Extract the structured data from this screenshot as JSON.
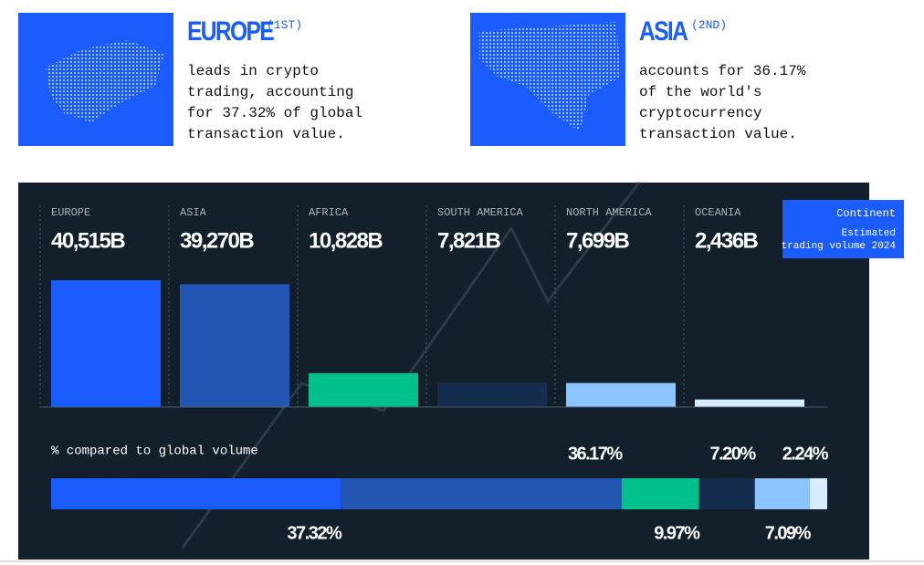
{
  "cards": [
    {
      "title": "EUROPE",
      "rank": "(1ST)",
      "text": "leads in crypto trading, accounting for 37.32% of global transaction value."
    },
    {
      "title": "ASIA",
      "rank": "(2ND)",
      "text": "accounts for 36.17% of the world's cryptocurrency transaction value."
    }
  ],
  "chart_data": [
    {
      "type": "bar",
      "categories": [
        "EUROPE",
        "ASIA",
        "AFRICA",
        "SOUTH AMERICA",
        "NORTH AMERICA",
        "OCEANIA"
      ],
      "values": [
        40515,
        39270,
        10828,
        7821,
        7699,
        2436
      ],
      "value_labels": [
        "40,515B",
        "39,270B",
        "10,828B",
        "7,821B",
        "7,699B",
        "2,436B"
      ],
      "colors": [
        "#1a5cff",
        "#2356b3",
        "#00c08b",
        "#142c4d",
        "#8cc4ff",
        "#d8ecff"
      ],
      "legend": {
        "title": "Continent",
        "subtitle": "Estimated trading volume 2024"
      }
    },
    {
      "type": "stacked-share",
      "title": "% compared to global volume",
      "values": [
        37.32,
        36.17,
        9.97,
        7.2,
        7.09,
        2.24
      ],
      "value_labels": [
        "37.32%",
        "36.17%",
        "9.97%",
        "7.20%",
        "7.09%",
        "2.24%"
      ],
      "colors": [
        "#1a5cff",
        "#2356b3",
        "#00c08b",
        "#142c4d",
        "#8cc4ff",
        "#d8ecff"
      ]
    }
  ]
}
